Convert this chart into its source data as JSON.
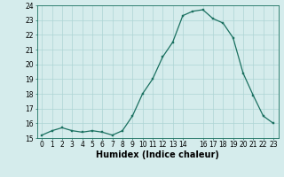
{
  "x": [
    0,
    1,
    2,
    3,
    4,
    5,
    6,
    7,
    8,
    9,
    10,
    11,
    12,
    13,
    14,
    15,
    16,
    17,
    18,
    19,
    20,
    21,
    22,
    23
  ],
  "y": [
    15.2,
    15.5,
    15.7,
    15.5,
    15.4,
    15.5,
    15.4,
    15.2,
    15.5,
    16.5,
    18.0,
    19.0,
    20.5,
    21.5,
    23.3,
    23.6,
    23.7,
    23.1,
    22.8,
    21.8,
    19.4,
    17.9,
    16.5,
    16.0
  ],
  "line_color": "#1a7060",
  "marker": "s",
  "marker_size": 1.8,
  "bg_color": "#d5ecec",
  "grid_color": "#aed4d4",
  "xlabel": "Humidex (Indice chaleur)",
  "xlim": [
    -0.5,
    23.5
  ],
  "ylim": [
    15,
    24
  ],
  "yticks": [
    15,
    16,
    17,
    18,
    19,
    20,
    21,
    22,
    23,
    24
  ],
  "xticks": [
    0,
    1,
    2,
    3,
    4,
    5,
    6,
    7,
    8,
    9,
    10,
    11,
    12,
    13,
    14,
    16,
    17,
    18,
    19,
    20,
    21,
    22,
    23
  ],
  "tick_fontsize": 5.5,
  "xlabel_fontsize": 7.0,
  "linewidth": 0.9
}
